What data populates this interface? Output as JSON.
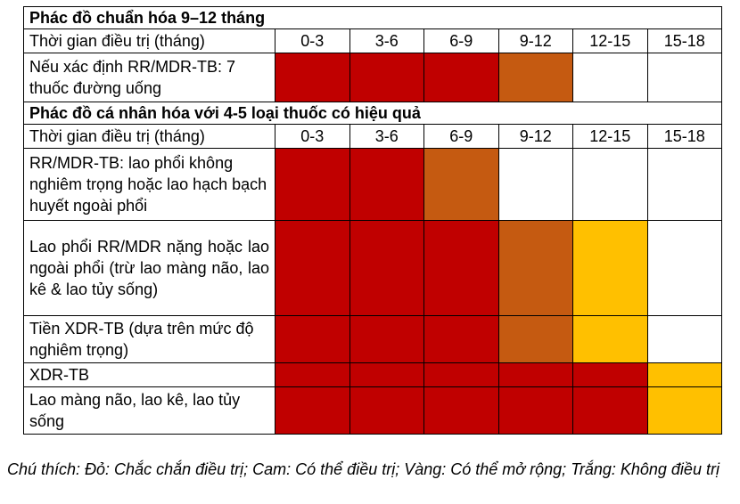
{
  "colors": {
    "red": "#c00000",
    "orange": "#c55a11",
    "yellow": "#ffc000",
    "white": "#ffffff"
  },
  "standard": {
    "title": "Phác đồ chuẩn hóa 9–12 tháng",
    "period_label": "Thời gian điều trị (tháng)",
    "periods": [
      "0-3",
      "3-6",
      "6-9",
      "9-12",
      "12-15",
      "15-18"
    ],
    "rows": [
      {
        "label": "Nếu xác định RR/MDR-TB: 7 thuốc đường uống",
        "cells": [
          "red",
          "red",
          "red",
          "orange",
          "white",
          "white"
        ]
      }
    ]
  },
  "individual": {
    "title": "Phác đồ cá nhân hóa với 4-5 loại thuốc có hiệu quả",
    "period_label": "Thời gian điều trị (tháng)",
    "periods": [
      "0-3",
      "3-6",
      "6-9",
      "9-12",
      "12-15",
      "15-18"
    ],
    "rows": [
      {
        "label": "RR/MDR-TB: lao phổi không nghiêm trọng hoặc lao hạch bạch huyết ngoài phổi",
        "cells": [
          "red",
          "red",
          "orange",
          "white",
          "white",
          "white"
        ]
      },
      {
        "label": "Lao phổi RR/MDR nặng hoặc lao ngoài phổi (trừ lao màng não, lao kê & lao tủy sống)",
        "cells": [
          "red",
          "red",
          "red",
          "orange",
          "yellow",
          "white"
        ]
      },
      {
        "label": "Tiền XDR-TB (dựa trên mức độ nghiêm trọng)",
        "cells": [
          "red",
          "red",
          "red",
          "orange",
          "yellow",
          "white"
        ]
      },
      {
        "label": "XDR-TB",
        "cells": [
          "red",
          "red",
          "red",
          "red",
          "red",
          "yellow"
        ]
      },
      {
        "label": "Lao màng não, lao kê, lao tủy sống",
        "cells": [
          "red",
          "red",
          "red",
          "red",
          "red",
          "yellow"
        ]
      }
    ]
  },
  "note": "Chú thích: Đỏ: Chắc chắn điều trị; Cam: Có thể điều trị; Vàng: Có thể mở rộng; Trắng: Không điều trị"
}
